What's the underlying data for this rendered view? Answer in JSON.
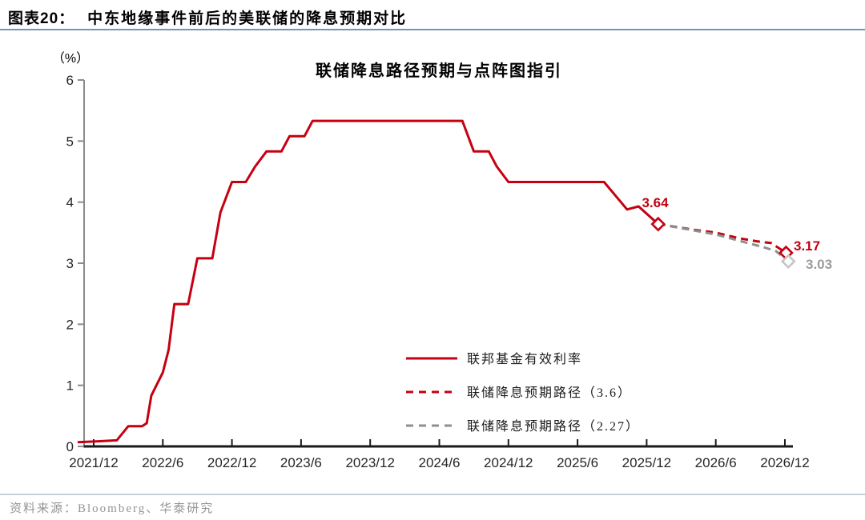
{
  "header": {
    "figure_label": "图表20：",
    "title": "中东地缘事件前后的美联储的降息预期对比"
  },
  "chart_data": {
    "type": "line",
    "title": "联储降息路径预期与点阵图指引",
    "ylabel": "（%）",
    "ylim": [
      0,
      6
    ],
    "y_ticks": [
      "0",
      "1",
      "2",
      "3",
      "4",
      "5",
      "6"
    ],
    "x_ticks": [
      "2021/12",
      "2022/6",
      "2022/12",
      "2023/6",
      "2023/12",
      "2024/6",
      "2024/12",
      "2025/6",
      "2025/12",
      "2026/6",
      "2026/12"
    ],
    "x_unit": "months since 2021/12, 6 months per tick",
    "grid": "off",
    "legend_position": "inside lower right",
    "series": [
      {
        "name": "联邦基金有效利率",
        "style": "solid",
        "color": "#c50011",
        "x": [
          -1.4,
          0,
          2,
          3,
          4.2,
          4.6,
          5,
          6,
          6.5,
          7,
          8.2,
          9,
          10.3,
          11,
          12,
          13.2,
          14,
          15,
          16.3,
          17,
          18.3,
          19,
          32,
          33,
          34.3,
          35,
          36,
          44.3,
          46.3,
          47.3,
          49
        ],
        "y": [
          0.07,
          0.08,
          0.1,
          0.33,
          0.33,
          0.38,
          0.83,
          1.21,
          1.58,
          2.33,
          2.33,
          3.08,
          3.08,
          3.83,
          4.33,
          4.33,
          4.58,
          4.83,
          4.83,
          5.08,
          5.08,
          5.33,
          5.33,
          4.83,
          4.83,
          4.58,
          4.33,
          4.33,
          3.88,
          3.93,
          3.64
        ]
      },
      {
        "name": "联储降息预期路径（3.6）",
        "style": "dashed",
        "color": "#c50011",
        "x": [
          49,
          52,
          54,
          56,
          57.5,
          58.8,
          60.1
        ],
        "y": [
          3.64,
          3.55,
          3.5,
          3.41,
          3.36,
          3.33,
          3.17
        ]
      },
      {
        "name": "联储降息预期路径（2.27）",
        "style": "dashed",
        "color": "#8f8f8f",
        "x": [
          49,
          52,
          54,
          56,
          58,
          59.2,
          60.3
        ],
        "y": [
          3.64,
          3.54,
          3.47,
          3.37,
          3.27,
          3.2,
          3.03
        ]
      }
    ],
    "markers": [
      {
        "x": 49,
        "y": 3.64,
        "color": "#c50011"
      },
      {
        "x": 60.1,
        "y": 3.17,
        "color": "#c50011"
      },
      {
        "x": 60.3,
        "y": 3.03,
        "color": "#c5c5c5"
      }
    ],
    "annotations": [
      {
        "text": "3.64",
        "color": "#c50011"
      },
      {
        "text": "3.17",
        "color": "#c50011"
      },
      {
        "text": "3.03",
        "color": "#9b9b9b"
      }
    ]
  },
  "legend": {
    "items": [
      {
        "label": "联邦基金有效利率",
        "color": "#c50011",
        "style": "solid"
      },
      {
        "label": "联储降息预期路径（3.6）",
        "color": "#c50011",
        "style": "dashed"
      },
      {
        "label": "联储降息预期路径（2.27）",
        "color": "#8f8f8f",
        "style": "dashed"
      }
    ]
  },
  "source": {
    "text": "资料来源：Bloomberg、华泰研究"
  }
}
